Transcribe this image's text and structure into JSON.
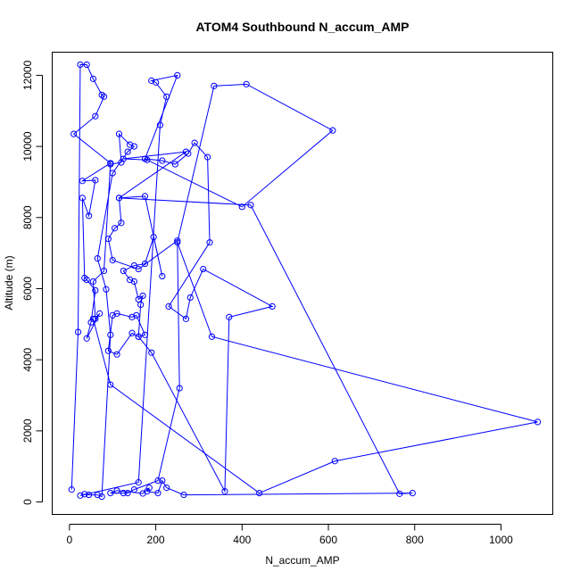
{
  "chart_data": {
    "type": "line",
    "title": "ATOM4 Southbound N_accum_AMP",
    "xlabel": "N_accum_AMP",
    "ylabel": "Altitude (m)",
    "xlim": [
      -40,
      1120
    ],
    "ylim": [
      -350,
      12650
    ],
    "xticks": [
      0,
      200,
      400,
      600,
      800,
      1000
    ],
    "yticks": [
      0,
      2000,
      4000,
      6000,
      8000,
      10000,
      12000
    ],
    "grid": false,
    "color": "#0000ff",
    "marker": "open-circle",
    "series": [
      {
        "points": [
          [
            5,
            350
          ],
          [
            20,
            4780
          ],
          [
            25,
            12300
          ],
          [
            40,
            12300
          ],
          [
            55,
            11900
          ],
          [
            75,
            11450
          ],
          [
            80,
            11400
          ],
          [
            60,
            10850
          ],
          [
            10,
            10350
          ],
          [
            95,
            9530
          ],
          [
            30,
            9030
          ],
          [
            60,
            9050
          ],
          [
            45,
            8050
          ],
          [
            30,
            8550
          ],
          [
            35,
            6300
          ],
          [
            40,
            6250
          ],
          [
            60,
            5950
          ],
          [
            50,
            5050
          ],
          [
            40,
            4600
          ],
          [
            70,
            5300
          ],
          [
            60,
            5150
          ],
          [
            55,
            6200
          ],
          [
            80,
            6500
          ],
          [
            95,
            9500
          ],
          [
            120,
            9550
          ],
          [
            115,
            10350
          ],
          [
            140,
            10050
          ],
          [
            150,
            10000
          ],
          [
            135,
            9850
          ],
          [
            100,
            9250
          ],
          [
            65,
            6850
          ],
          [
            85,
            5980
          ],
          [
            95,
            4700
          ],
          [
            75,
            150
          ],
          [
            65,
            200
          ],
          [
            45,
            200
          ],
          [
            35,
            220
          ],
          [
            25,
            180
          ],
          [
            160,
            550
          ],
          [
            210,
            10600
          ],
          [
            225,
            11400
          ],
          [
            200,
            11800
          ],
          [
            190,
            11850
          ],
          [
            250,
            12000
          ],
          [
            175,
            9650
          ],
          [
            215,
            9600
          ],
          [
            245,
            9500
          ],
          [
            275,
            9800
          ],
          [
            290,
            10100
          ],
          [
            320,
            9700
          ],
          [
            325,
            7300
          ],
          [
            230,
            5500
          ],
          [
            270,
            5150
          ],
          [
            280,
            5750
          ],
          [
            310,
            6550
          ],
          [
            470,
            5500
          ],
          [
            370,
            5200
          ],
          [
            360,
            300
          ],
          [
            190,
            4200
          ],
          [
            160,
            4650
          ],
          [
            175,
            4700
          ],
          [
            155,
            5250
          ],
          [
            145,
            5200
          ],
          [
            110,
            5300
          ],
          [
            100,
            5250
          ],
          [
            90,
            4250
          ],
          [
            110,
            4150
          ],
          [
            145,
            4750
          ],
          [
            160,
            4650
          ],
          [
            165,
            5550
          ],
          [
            170,
            5800
          ],
          [
            160,
            5700
          ],
          [
            150,
            6200
          ],
          [
            140,
            6250
          ],
          [
            125,
            6500
          ],
          [
            150,
            6650
          ],
          [
            175,
            6700
          ],
          [
            195,
            7450
          ],
          [
            215,
            6350
          ],
          [
            175,
            8600
          ],
          [
            115,
            8550
          ],
          [
            120,
            7850
          ],
          [
            105,
            7700
          ],
          [
            90,
            7400
          ],
          [
            100,
            6800
          ],
          [
            160,
            6550
          ],
          [
            250,
            7350
          ],
          [
            255,
            3200
          ],
          [
            205,
            600
          ],
          [
            150,
            350
          ],
          [
            135,
            250
          ],
          [
            125,
            250
          ],
          [
            95,
            250
          ],
          [
            110,
            320
          ],
          [
            170,
            240
          ],
          [
            185,
            400
          ],
          [
            180,
            300
          ],
          [
            205,
            250
          ],
          [
            215,
            600
          ],
          [
            225,
            400
          ],
          [
            265,
            200
          ],
          [
            795,
            250
          ],
          [
            765,
            230
          ],
          [
            420,
            8350
          ],
          [
            115,
            8550
          ],
          [
            270,
            9850
          ],
          [
            125,
            9650
          ],
          [
            180,
            9620
          ],
          [
            400,
            8300
          ],
          [
            610,
            10450
          ],
          [
            410,
            11750
          ],
          [
            335,
            11700
          ],
          [
            250,
            7300
          ],
          [
            330,
            4650
          ],
          [
            1085,
            2250
          ],
          [
            615,
            1150
          ],
          [
            440,
            250
          ],
          [
            95,
            3300
          ],
          [
            55,
            5150
          ]
        ]
      }
    ]
  }
}
